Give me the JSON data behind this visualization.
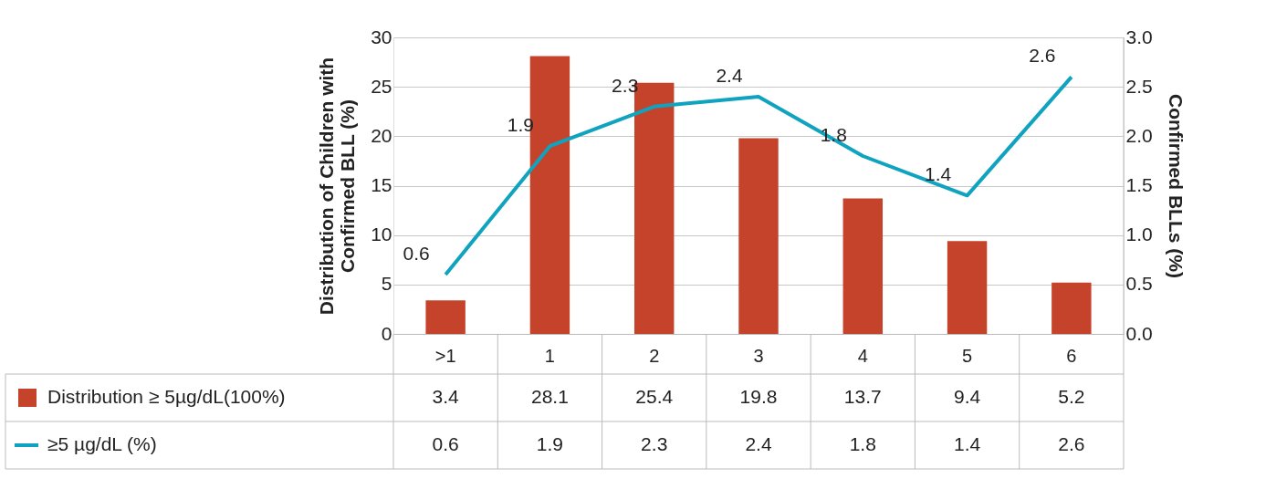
{
  "chart_data": {
    "type": "bar",
    "categories": [
      ">1",
      "1",
      "2",
      "3",
      "4",
      "5",
      "6"
    ],
    "ylabel": "Distribution of Children with\nConfirmed BLL  (%)",
    "y2label": "Confirmed BLLs  (%)",
    "ylim": [
      0,
      30
    ],
    "yticks": [
      0,
      5,
      10,
      15,
      20,
      25,
      30
    ],
    "y2lim": [
      0,
      3.0
    ],
    "y2ticks": [
      {
        "value": 0,
        "label": "0.0"
      },
      {
        "value": 0.5,
        "label": "0.5"
      },
      {
        "value": 1,
        "label": "1.0"
      },
      {
        "value": 1.5,
        "label": "1.5"
      },
      {
        "value": 2,
        "label": "2.0"
      },
      {
        "value": 2.5,
        "label": "2.5"
      },
      {
        "value": 3,
        "label": "3.0"
      }
    ],
    "grid": "y",
    "legend": "bottom",
    "data_labels": true,
    "series": [
      {
        "name": "Distribution ≥ 5µg/dL(100%)",
        "color": "#c5432b",
        "values": [
          3.4,
          28.1,
          25.4,
          19.8,
          13.7,
          9.4,
          5.2
        ]
      },
      {
        "name": "≥5 µg/dL (%)",
        "type": "line",
        "axis": "y2",
        "color": "#0fa3bf",
        "values": [
          0.6,
          1.9,
          2.3,
          2.4,
          1.8,
          1.4,
          2.6
        ],
        "value_labels": [
          "0.6",
          "1.9",
          "2.3",
          "2.4",
          "1.8",
          "1.4",
          "2.6"
        ]
      }
    ]
  }
}
